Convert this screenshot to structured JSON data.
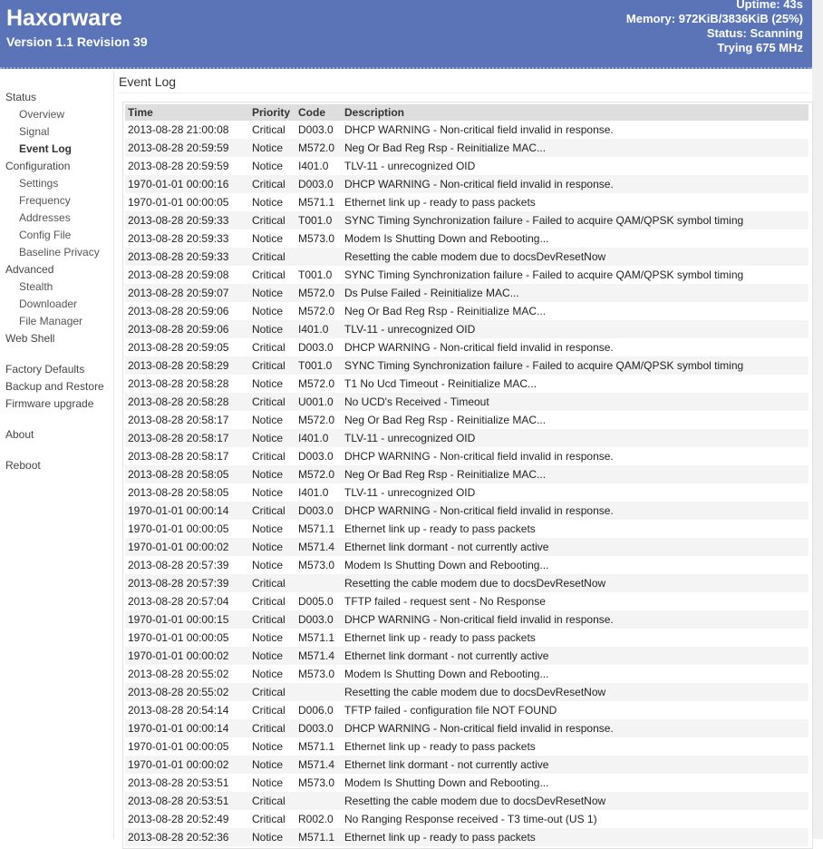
{
  "header": {
    "brand": "Haxorware",
    "version": "Version 1.1 Revision 39",
    "uptime": "Uptime: 43s",
    "memory": "Memory: 972KiB/3836KiB (25%)",
    "status": "Status: Scanning",
    "trying": "Trying 675 MHz"
  },
  "sidebar": {
    "items": [
      {
        "label": "Status",
        "level": 0
      },
      {
        "label": "Overview",
        "level": 1
      },
      {
        "label": "Signal",
        "level": 1
      },
      {
        "label": "Event Log",
        "level": 1,
        "active": true
      },
      {
        "label": "Configuration",
        "level": 0
      },
      {
        "label": "Settings",
        "level": 1
      },
      {
        "label": "Frequency",
        "level": 1
      },
      {
        "label": "Addresses",
        "level": 1
      },
      {
        "label": "Config File",
        "level": 1
      },
      {
        "label": "Baseline Privacy",
        "level": 1
      },
      {
        "label": "Advanced",
        "level": 0
      },
      {
        "label": "Stealth",
        "level": 1
      },
      {
        "label": "Downloader",
        "level": 1
      },
      {
        "label": "File Manager",
        "level": 1
      },
      {
        "label": "Web Shell",
        "level": 0
      },
      {
        "gap": true
      },
      {
        "label": "Factory Defaults",
        "level": 0
      },
      {
        "label": "Backup and Restore",
        "level": 0
      },
      {
        "label": "Firmware upgrade",
        "level": 0
      },
      {
        "gap": true
      },
      {
        "label": "About",
        "level": 0
      },
      {
        "gap": true
      },
      {
        "label": "Reboot",
        "level": 0
      }
    ]
  },
  "main": {
    "title": "Event Log",
    "columns": [
      "Time",
      "Priority",
      "Code",
      "Description"
    ],
    "rows": [
      [
        "2013-08-28 21:00:08",
        "Critical",
        "D003.0",
        "DHCP WARNING - Non-critical field invalid in response."
      ],
      [
        "2013-08-28 20:59:59",
        "Notice",
        "M572.0",
        "Neg Or Bad Reg Rsp - Reinitialize MAC..."
      ],
      [
        "2013-08-28 20:59:59",
        "Notice",
        "I401.0",
        "TLV-11 - unrecognized OID"
      ],
      [
        "1970-01-01 00:00:16",
        "Critical",
        "D003.0",
        "DHCP WARNING - Non-critical field invalid in response."
      ],
      [
        "1970-01-01 00:00:05",
        "Notice",
        "M571.1",
        "Ethernet link up - ready to pass packets"
      ],
      [
        "2013-08-28 20:59:33",
        "Critical",
        "T001.0",
        "SYNC Timing Synchronization failure - Failed to acquire QAM/QPSK symbol timing"
      ],
      [
        "2013-08-28 20:59:33",
        "Notice",
        "M573.0",
        "Modem Is Shutting Down and Rebooting..."
      ],
      [
        "2013-08-28 20:59:33",
        "Critical",
        "",
        "Resetting the cable modem due to docsDevResetNow"
      ],
      [
        "2013-08-28 20:59:08",
        "Critical",
        "T001.0",
        "SYNC Timing Synchronization failure - Failed to acquire QAM/QPSK symbol timing"
      ],
      [
        "2013-08-28 20:59:07",
        "Notice",
        "M572.0",
        "Ds Pulse Failed - Reinitialize MAC..."
      ],
      [
        "2013-08-28 20:59:06",
        "Notice",
        "M572.0",
        "Neg Or Bad Reg Rsp - Reinitialize MAC..."
      ],
      [
        "2013-08-28 20:59:06",
        "Notice",
        "I401.0",
        "TLV-11 - unrecognized OID"
      ],
      [
        "2013-08-28 20:59:05",
        "Critical",
        "D003.0",
        "DHCP WARNING - Non-critical field invalid in response."
      ],
      [
        "2013-08-28 20:58:29",
        "Critical",
        "T001.0",
        "SYNC Timing Synchronization failure - Failed to acquire QAM/QPSK symbol timing"
      ],
      [
        "2013-08-28 20:58:28",
        "Notice",
        "M572.0",
        "T1 No Ucd Timeout - Reinitialize MAC..."
      ],
      [
        "2013-08-28 20:58:28",
        "Critical",
        "U001.0",
        "No UCD's Received - Timeout"
      ],
      [
        "2013-08-28 20:58:17",
        "Notice",
        "M572.0",
        "Neg Or Bad Reg Rsp - Reinitialize MAC..."
      ],
      [
        "2013-08-28 20:58:17",
        "Notice",
        "I401.0",
        "TLV-11 - unrecognized OID"
      ],
      [
        "2013-08-28 20:58:17",
        "Critical",
        "D003.0",
        "DHCP WARNING - Non-critical field invalid in response."
      ],
      [
        "2013-08-28 20:58:05",
        "Notice",
        "M572.0",
        "Neg Or Bad Reg Rsp - Reinitialize MAC..."
      ],
      [
        "2013-08-28 20:58:05",
        "Notice",
        "I401.0",
        "TLV-11 - unrecognized OID"
      ],
      [
        "1970-01-01 00:00:14",
        "Critical",
        "D003.0",
        "DHCP WARNING - Non-critical field invalid in response."
      ],
      [
        "1970-01-01 00:00:05",
        "Notice",
        "M571.1",
        "Ethernet link up - ready to pass packets"
      ],
      [
        "1970-01-01 00:00:02",
        "Notice",
        "M571.4",
        "Ethernet link dormant - not currently active"
      ],
      [
        "2013-08-28 20:57:39",
        "Notice",
        "M573.0",
        "Modem Is Shutting Down and Rebooting..."
      ],
      [
        "2013-08-28 20:57:39",
        "Critical",
        "",
        "Resetting the cable modem due to docsDevResetNow"
      ],
      [
        "2013-08-28 20:57:04",
        "Critical",
        "D005.0",
        "TFTP failed - request sent - No Response"
      ],
      [
        "1970-01-01 00:00:15",
        "Critical",
        "D003.0",
        "DHCP WARNING - Non-critical field invalid in response."
      ],
      [
        "1970-01-01 00:00:05",
        "Notice",
        "M571.1",
        "Ethernet link up - ready to pass packets"
      ],
      [
        "1970-01-01 00:00:02",
        "Notice",
        "M571.4",
        "Ethernet link dormant - not currently active"
      ],
      [
        "2013-08-28 20:55:02",
        "Notice",
        "M573.0",
        "Modem Is Shutting Down and Rebooting..."
      ],
      [
        "2013-08-28 20:55:02",
        "Critical",
        "",
        "Resetting the cable modem due to docsDevResetNow"
      ],
      [
        "2013-08-28 20:54:14",
        "Critical",
        "D006.0",
        "TFTP failed - configuration file NOT FOUND"
      ],
      [
        "1970-01-01 00:00:14",
        "Critical",
        "D003.0",
        "DHCP WARNING - Non-critical field invalid in response."
      ],
      [
        "1970-01-01 00:00:05",
        "Notice",
        "M571.1",
        "Ethernet link up - ready to pass packets"
      ],
      [
        "1970-01-01 00:00:02",
        "Notice",
        "M571.4",
        "Ethernet link dormant - not currently active"
      ],
      [
        "2013-08-28 20:53:51",
        "Notice",
        "M573.0",
        "Modem Is Shutting Down and Rebooting..."
      ],
      [
        "2013-08-28 20:53:51",
        "Critical",
        "",
        "Resetting the cable modem due to docsDevResetNow"
      ],
      [
        "2013-08-28 20:52:49",
        "Critical",
        "R002.0",
        "No Ranging Response received - T3 time-out (US 1)"
      ],
      [
        "2013-08-28 20:52:36",
        "Notice",
        "M571.1",
        "Ethernet link up - ready to pass packets"
      ]
    ]
  },
  "colors": {
    "header_bg": "#5b74b8",
    "header_text": "#ffffff",
    "table_header_bg": "#dedede",
    "row_alt_bg": "#f4f4f4"
  }
}
